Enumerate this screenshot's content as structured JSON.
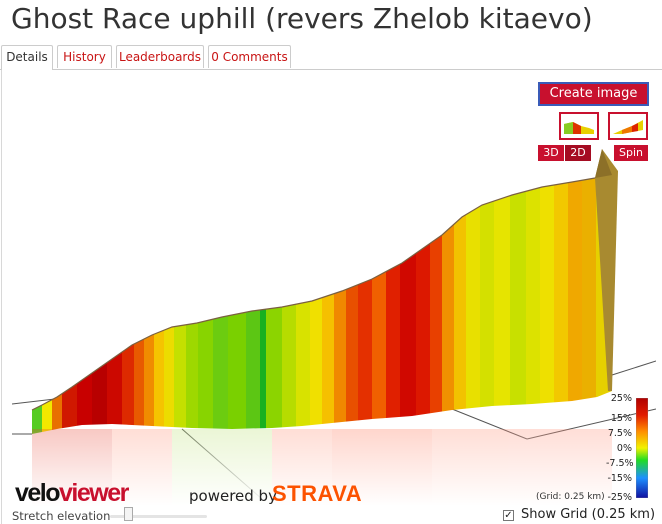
{
  "page": {
    "title": "Ghost Race uphill (revers Zhelob kitaevo)"
  },
  "tabs": [
    {
      "label": "Details",
      "active": true
    },
    {
      "label": "History",
      "active": false
    },
    {
      "label": "Leaderboards",
      "active": false
    },
    {
      "label": "0 Comments",
      "active": false
    }
  ],
  "viewer": {
    "create_image_label": "Create image",
    "view_3d_label": "3D",
    "view_2d_label": "2D",
    "spin_label": "Spin",
    "legend": {
      "labels": [
        "25%",
        "15%",
        "7.5%",
        "0%",
        "-7.5%",
        "-15%",
        "-25%"
      ],
      "colors": [
        "#b00000",
        "#e21b00",
        "#ff8c00",
        "#f2f200",
        "#22dd22",
        "#1e90ff",
        "#1010a0"
      ]
    },
    "grid_note": "(Grid: 0.25 km)",
    "logo_velo": "velo",
    "logo_viewer": "viewer",
    "powered_by": "powered by",
    "strava_logo": "STRAVA"
  },
  "controls": {
    "stretch_label": "Stretch elevation",
    "stretch_value": 0.15,
    "show_grid_label": "Show Grid (0.25 km)",
    "show_grid_checked": true
  },
  "colors": {
    "accent": "#c8102e",
    "link": "#c81414"
  }
}
